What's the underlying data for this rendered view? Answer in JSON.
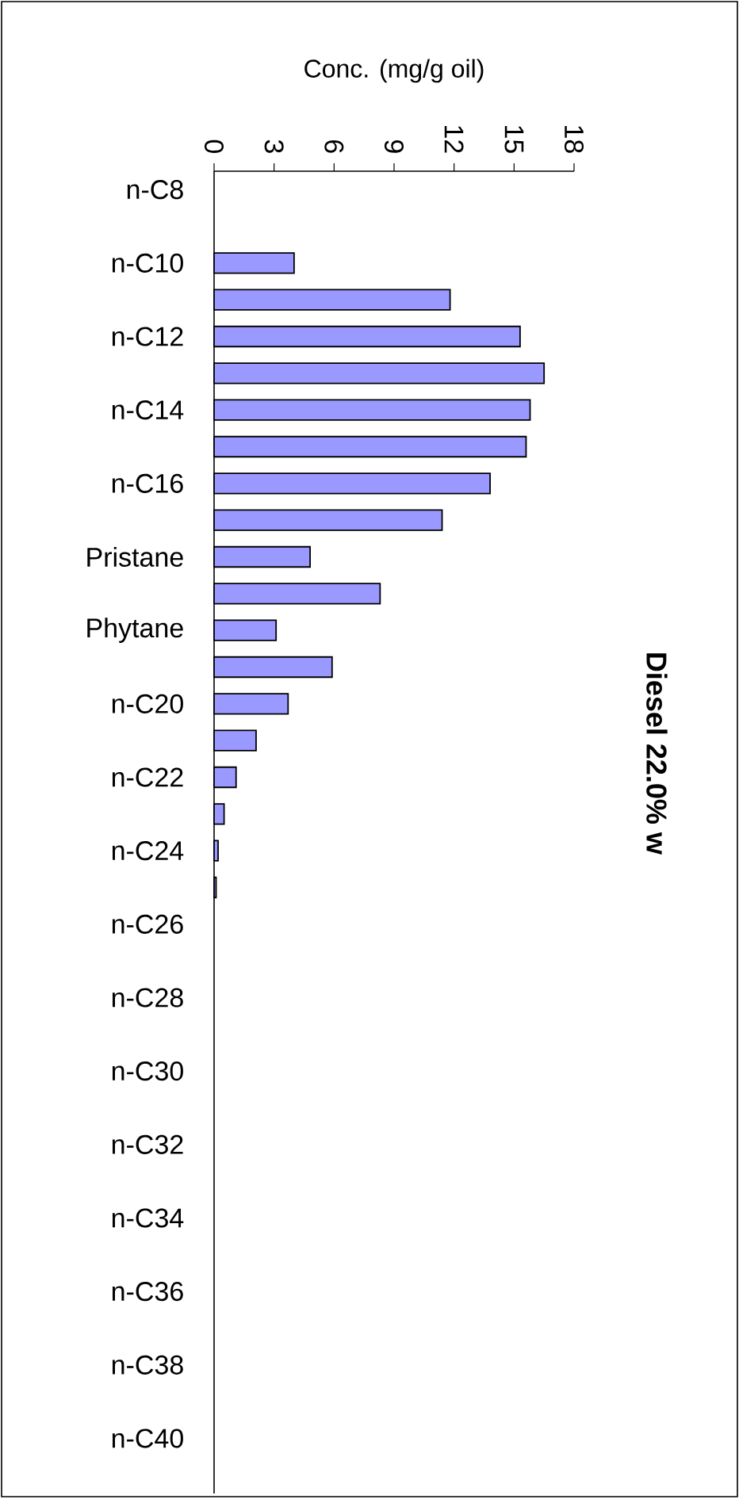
{
  "chart_data": {
    "type": "bar",
    "orientation": "horizontal",
    "title": "Diesel 22.0% w",
    "xlabel": "Conc. (mg/g oil)",
    "categories": [
      "n-C8",
      null,
      "n-C10",
      null,
      "n-C12",
      null,
      "n-C14",
      null,
      "n-C16",
      null,
      "Pristane",
      null,
      "Phytane",
      null,
      "n-C20",
      null,
      "n-C22",
      null,
      "n-C24",
      null,
      "n-C26",
      null,
      "n-C28",
      null,
      "n-C30",
      null,
      "n-C32",
      null,
      "n-C34",
      null,
      "n-C36",
      null,
      "n-C38",
      null,
      "n-C40",
      null
    ],
    "values": [
      0,
      0,
      4.0,
      11.8,
      15.3,
      16.5,
      15.8,
      15.6,
      13.8,
      11.4,
      4.8,
      8.3,
      3.1,
      5.9,
      3.7,
      2.1,
      1.1,
      0.5,
      0.2,
      0.1,
      0,
      0,
      0,
      0,
      0,
      0,
      0,
      0,
      0,
      0,
      0,
      0,
      0,
      0,
      0,
      0
    ],
    "color": "#9999ff",
    "xlim": [
      0,
      18
    ],
    "xticks": [
      0,
      3,
      6,
      9,
      12,
      15,
      18
    ]
  }
}
